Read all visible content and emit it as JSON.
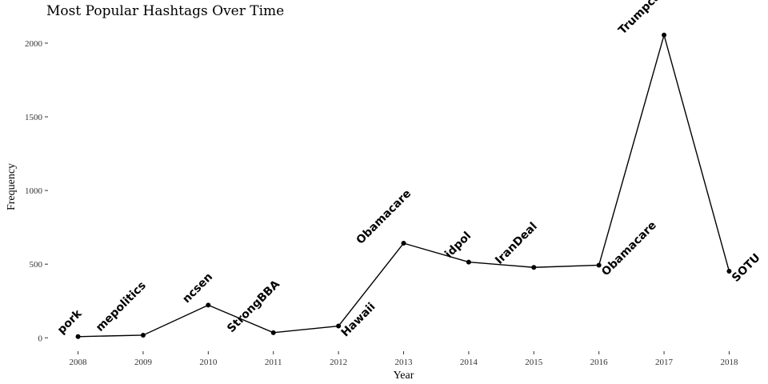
{
  "chart_data": {
    "type": "line",
    "title": "Most Popular Hashtags Over Time",
    "xlabel": "Year",
    "ylabel": "Frequency",
    "x": [
      2008,
      2009,
      2010,
      2011,
      2012,
      2013,
      2014,
      2015,
      2016,
      2017,
      2018
    ],
    "y": [
      8,
      18,
      222,
      35,
      80,
      642,
      514,
      478,
      493,
      2055,
      452
    ],
    "labels": [
      "pork",
      "mepolitics",
      "ncsen",
      "StrongBBA",
      "Hawaii",
      "Obamacare",
      "idpol",
      "IranDeal",
      "Obamacare",
      "Trumpcare",
      "SOTU"
    ],
    "label_placement": [
      "above",
      "above",
      "above",
      "above",
      "below",
      "above",
      "above",
      "above",
      "below",
      "above",
      "below"
    ],
    "xlim": [
      2007.6,
      2018.4
    ],
    "ylim": [
      -80,
      2130
    ],
    "x_ticks": [
      2008,
      2009,
      2010,
      2011,
      2012,
      2013,
      2014,
      2015,
      2016,
      2017,
      2018
    ],
    "y_ticks": [
      0,
      500,
      1000,
      1500,
      2000
    ],
    "grid": false,
    "line_color": "#000000",
    "point_color": "#000000"
  }
}
